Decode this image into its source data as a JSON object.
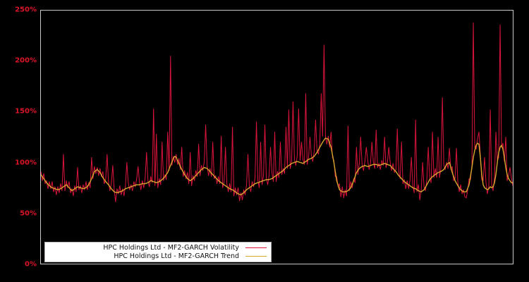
{
  "chart": {
    "background": "#000000",
    "frame_color": "#c9c9c9",
    "tick_label_color": "#dc1428",
    "legend_background": "#ffffff"
  },
  "chart_data": {
    "type": "line",
    "title": "",
    "xlabel": "",
    "ylabel": "",
    "unit": "%",
    "ylim": [
      0,
      250
    ],
    "grid": false,
    "legend_position": "lower-left",
    "x_tick_labels_shown": false,
    "yticks": [
      {
        "label": "250%",
        "value": 250
      },
      {
        "label": "200%",
        "value": 200
      },
      {
        "label": "150%",
        "value": 150
      },
      {
        "label": "100%",
        "value": 100
      },
      {
        "label": "50%",
        "value": 50
      },
      {
        "label": "0%",
        "value": 0
      }
    ],
    "series": [
      {
        "name": "HPC Holdings Ltd - MF2-GARCH Volatility",
        "color": "#dc143c",
        "stroke_width": 1,
        "values": [
          91,
          82,
          89,
          79,
          82,
          74,
          81,
          74,
          81,
          71,
          76,
          68,
          76,
          70,
          79,
          72,
          108,
          72,
          82,
          75,
          81,
          70,
          74,
          67,
          77,
          71,
          95,
          73,
          77,
          70,
          78,
          73,
          81,
          73,
          80,
          75,
          105,
          84,
          96,
          89,
          95,
          87,
          94,
          86,
          91,
          79,
          83,
          108,
          81,
          72,
          79,
          97,
          73,
          61,
          74,
          69,
          77,
          68,
          74,
          67,
          77,
          100,
          80,
          73,
          78,
          72,
          81,
          76,
          84,
          96,
          80,
          73,
          82,
          75,
          84,
          110,
          82,
          76,
          86,
          80,
          153,
          77,
          128,
          75,
          84,
          78,
          120,
          82,
          88,
          83,
          130,
          92,
          205,
          97,
          106,
          100,
          108,
          98,
          104,
          93,
          115,
          86,
          92,
          84,
          90,
          79,
          110,
          77,
          87,
          82,
          92,
          86,
          118,
          87,
          97,
          92,
          101,
          137,
          96,
          87,
          94,
          86,
          120,
          84,
          87,
          79,
          86,
          79,
          126,
          75,
          80,
          115,
          79,
          71,
          79,
          71,
          135,
          67,
          75,
          68,
          75,
          62,
          70,
          63,
          73,
          68,
          78,
          108,
          77,
          71,
          81,
          76,
          85,
          140,
          82,
          75,
          120,
          78,
          87,
          137,
          85,
          78,
          87,
          115,
          90,
          81,
          130,
          81,
          91,
          85,
          120,
          88,
          94,
          89,
          135,
          94,
          152,
          94,
          101,
          160,
          103,
          97,
          106,
          153,
          102,
          120,
          103,
          98,
          168,
          98,
          105,
          125,
          107,
          101,
          111,
          142,
          112,
          108,
          119,
          168,
          126,
          216,
          126,
          118,
          126,
          115,
          130,
          105,
          102,
          86,
          86,
          76,
          79,
          66,
          76,
          65,
          73,
          67,
          136,
          72,
          81,
          75,
          84,
          80,
          115,
          88,
          99,
          125,
          98,
          92,
          101,
          115,
          102,
          93,
          99,
          120,
          101,
          94,
          132,
          95,
          99,
          93,
          102,
          97,
          125,
          95,
          100,
          115,
          100,
          92,
          99,
          90,
          93,
          133,
          91,
          84,
          120,
          79,
          83,
          74,
          82,
          74,
          82,
          105,
          77,
          70,
          142,
          71,
          78,
          63,
          73,
          100,
          76,
          72,
          83,
          115,
          85,
          80,
          130,
          85,
          94,
          85,
          125,
          85,
          94,
          164,
          98,
          93,
          100,
          94,
          114,
          93,
          96,
          82,
          84,
          114,
          80,
          71,
          78,
          69,
          73,
          66,
          65,
          73,
          84,
          83,
          97,
          238,
          115,
          113,
          124,
          130,
          107,
          83,
          82,
          105,
          80,
          69,
          76,
          152,
          78,
          72,
          85,
          130,
          102,
          105,
          236,
          115,
          119,
          101,
          125,
          82,
          87,
          95,
          85,
          77
        ]
      },
      {
        "name": "HPC Holdings Ltd - MF2-GARCH Trend",
        "color": "#d9a62e",
        "stroke_width": 1.4,
        "values": [
          88,
          86,
          84,
          82,
          80,
          78.5,
          77,
          76,
          75,
          74.5,
          74,
          73.5,
          73,
          73.5,
          74,
          75,
          76,
          77,
          78,
          76.5,
          75,
          73.5,
          72,
          73,
          74,
          75,
          76,
          75.5,
          75,
          74.5,
          74,
          74.5,
          75,
          76.5,
          78,
          81,
          84,
          87.5,
          91,
          92,
          93,
          91.5,
          90,
          87.5,
          85,
          83,
          81,
          79.5,
          78,
          76,
          74,
          72.5,
          71,
          70.5,
          70,
          70.5,
          71,
          71.5,
          72,
          73,
          74,
          74.5,
          75,
          75.5,
          76,
          76.5,
          77,
          77.5,
          78,
          78,
          78,
          78.5,
          79,
          79,
          79,
          79.5,
          80,
          81,
          82,
          81.5,
          81,
          80.5,
          80,
          80.5,
          81,
          82,
          83,
          84.5,
          86,
          88,
          90,
          93.5,
          97,
          100.5,
          104,
          106,
          105,
          102,
          99,
          96,
          93,
          90.5,
          88,
          86,
          84,
          83,
          82,
          83,
          84,
          85.5,
          87,
          88.5,
          90,
          91.5,
          93,
          94,
          95,
          94.5,
          94,
          92.5,
          91,
          89.5,
          88,
          86.5,
          85,
          83.5,
          82,
          81,
          80,
          79,
          78,
          77,
          76,
          75,
          74,
          73.5,
          73,
          72,
          71,
          70,
          69,
          68.5,
          68,
          69,
          70,
          71.5,
          73,
          74,
          75,
          76,
          77,
          78,
          79,
          79.5,
          80,
          80.5,
          81,
          81.5,
          82,
          82.5,
          83,
          83,
          83,
          83.5,
          84,
          85,
          86,
          87,
          88,
          89,
          90,
          91,
          92,
          93.5,
          95,
          96,
          97,
          98,
          99,
          99.5,
          100,
          100.5,
          101,
          100.5,
          100,
          99.5,
          99,
          100,
          101,
          102,
          103,
          103.5,
          104,
          105,
          106,
          108,
          110,
          112.5,
          115,
          117.5,
          120,
          122,
          124,
          123.5,
          123,
          119,
          115,
          107.5,
          100,
          91,
          82,
          77.5,
          73,
          72,
          71,
          71,
          71,
          71.5,
          72,
          73.5,
          75,
          78.5,
          82,
          86,
          90,
          92,
          94,
          95,
          96,
          96.5,
          97,
          96.5,
          96,
          96.5,
          97,
          97.5,
          98,
          98,
          98,
          97.5,
          97,
          97.5,
          98,
          98.5,
          99,
          98.5,
          98,
          97.5,
          97,
          95.5,
          94,
          92.5,
          91,
          89,
          87,
          85.5,
          84,
          82.5,
          81,
          80,
          79,
          78,
          77,
          76,
          75,
          74.5,
          74,
          73,
          72,
          71.5,
          71,
          72,
          73,
          75.5,
          78,
          80.5,
          83,
          84.5,
          86,
          87,
          88,
          89,
          90,
          90.5,
          91,
          92,
          93,
          95.5,
          98,
          99,
          100,
          95,
          90,
          86,
          82,
          79.5,
          77,
          75,
          73,
          72,
          71,
          71,
          71,
          74.5,
          78,
          86.5,
          95,
          105,
          112,
          117,
          119,
          118,
          105,
          88,
          78,
          75,
          74,
          73,
          74,
          76,
          75,
          76,
          80,
          88,
          100,
          110,
          115,
          117,
          113,
          105,
          95,
          88,
          84,
          82,
          80,
          80
        ]
      }
    ]
  }
}
